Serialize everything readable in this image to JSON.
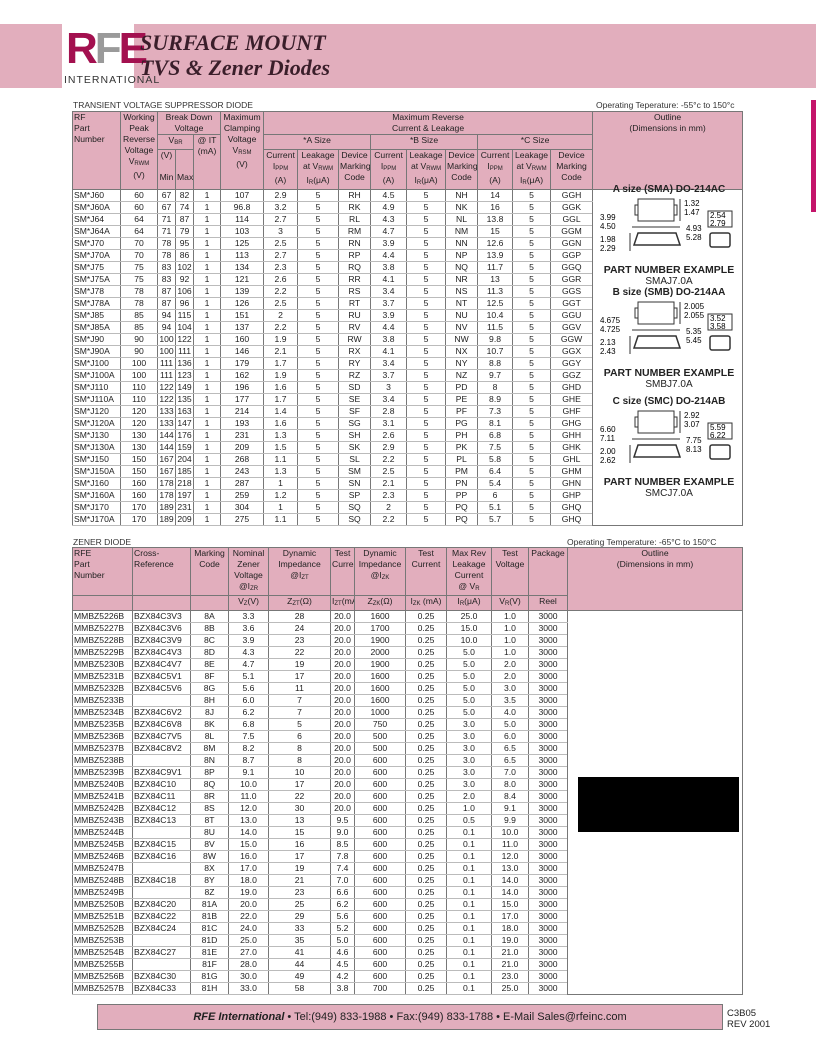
{
  "header": {
    "logo_text": "RFE",
    "logo_sub": "INTERNATIONAL",
    "title_line1": "SURFACE MOUNT",
    "title_line2": "TVS & Zener Diodes",
    "accent": "#a3104f",
    "band_color": "#e2aebd"
  },
  "tvs": {
    "caption": "TRANSIENT VOLTAGE SUPPRESSOR DIODE",
    "temp": "Operating Teperature: -55°c to 150°c",
    "h": {
      "part": "RF\nPart\nNumber",
      "working": "Working\nPeak\nReverse\nVoltage",
      "vrwm": "V",
      "vrwm_sub": "RWM",
      "v_unit": "(V)",
      "breakdown": "Break Down\nVoltage",
      "vbr": "V",
      "vbr_sub": "BR",
      "it": "@ IT\n(mA)",
      "min": "Min",
      "max": "Max",
      "clamp": "Maximum\nClamping\nVoltage",
      "vrsm": "V",
      "vrsm_sub": "RSM",
      "maxrev": "Maximum Reverse\nCurrent & Leakage",
      "a_size": "*A Size",
      "b_size": "*B Size",
      "c_size": "*C Size",
      "current": "Current",
      "ippm": "I",
      "ippm_sub": "PPM",
      "a_unit": "(A)",
      "leakage": "Leakage",
      "at_vrwm": "at V",
      "ir": "I",
      "ir_sub": "R",
      "ir_unit": "(μA)",
      "device": "Device\nMarking\nCode",
      "outline": "Outline\n(Dimensions in mm)"
    },
    "rows": [
      [
        "SM*J60",
        "60",
        "67",
        "82",
        "1",
        "107",
        "2.9",
        "5",
        "RH",
        "4.5",
        "5",
        "NH",
        "14",
        "5",
        "GGH"
      ],
      [
        "SM*J60A",
        "60",
        "67",
        "74",
        "1",
        "96.8",
        "3.2",
        "5",
        "RK",
        "4.9",
        "5",
        "NK",
        "16",
        "5",
        "GGK"
      ],
      [
        "SM*J64",
        "64",
        "71",
        "87",
        "1",
        "114",
        "2.7",
        "5",
        "RL",
        "4.3",
        "5",
        "NL",
        "13.8",
        "5",
        "GGL"
      ],
      [
        "SM*J64A",
        "64",
        "71",
        "79",
        "1",
        "103",
        "3",
        "5",
        "RM",
        "4.7",
        "5",
        "NM",
        "15",
        "5",
        "GGM"
      ],
      [
        "SM*J70",
        "70",
        "78",
        "95",
        "1",
        "125",
        "2.5",
        "5",
        "RN",
        "3.9",
        "5",
        "NN",
        "12.6",
        "5",
        "GGN"
      ],
      [
        "SM*J70A",
        "70",
        "78",
        "86",
        "1",
        "113",
        "2.7",
        "5",
        "RP",
        "4.4",
        "5",
        "NP",
        "13.9",
        "5",
        "GGP"
      ],
      [
        "SM*J75",
        "75",
        "83",
        "102",
        "1",
        "134",
        "2.3",
        "5",
        "RQ",
        "3.8",
        "5",
        "NQ",
        "11.7",
        "5",
        "GGQ"
      ],
      [
        "SM*J75A",
        "75",
        "83",
        "92",
        "1",
        "121",
        "2.6",
        "5",
        "RR",
        "4.1",
        "5",
        "NR",
        "13",
        "5",
        "GGR"
      ],
      [
        "SM*J78",
        "78",
        "87",
        "106",
        "1",
        "139",
        "2.2",
        "5",
        "RS",
        "3.4",
        "5",
        "NS",
        "11.3",
        "5",
        "GGS"
      ],
      [
        "SM*J78A",
        "78",
        "87",
        "96",
        "1",
        "126",
        "2.5",
        "5",
        "RT",
        "3.7",
        "5",
        "NT",
        "12.5",
        "5",
        "GGT"
      ],
      [
        "SM*J85",
        "85",
        "94",
        "115",
        "1",
        "151",
        "2",
        "5",
        "RU",
        "3.9",
        "5",
        "NU",
        "10.4",
        "5",
        "GGU"
      ],
      [
        "SM*J85A",
        "85",
        "94",
        "104",
        "1",
        "137",
        "2.2",
        "5",
        "RV",
        "4.4",
        "5",
        "NV",
        "11.5",
        "5",
        "GGV"
      ],
      [
        "SM*J90",
        "90",
        "100",
        "122",
        "1",
        "160",
        "1.9",
        "5",
        "RW",
        "3.8",
        "5",
        "NW",
        "9.8",
        "5",
        "GGW"
      ],
      [
        "SM*J90A",
        "90",
        "100",
        "111",
        "1",
        "146",
        "2.1",
        "5",
        "RX",
        "4.1",
        "5",
        "NX",
        "10.7",
        "5",
        "GGX"
      ],
      [
        "SM*J100",
        "100",
        "111",
        "136",
        "1",
        "179",
        "1.7",
        "5",
        "RY",
        "3.4",
        "5",
        "NY",
        "8.8",
        "5",
        "GGY"
      ],
      [
        "SM*J100A",
        "100",
        "111",
        "123",
        "1",
        "162",
        "1.9",
        "5",
        "RZ",
        "3.7",
        "5",
        "NZ",
        "9.7",
        "5",
        "GGZ"
      ],
      [
        "SM*J110",
        "110",
        "122",
        "149",
        "1",
        "196",
        "1.6",
        "5",
        "SD",
        "3",
        "5",
        "PD",
        "8",
        "5",
        "GHD"
      ],
      [
        "SM*J110A",
        "110",
        "122",
        "135",
        "1",
        "177",
        "1.7",
        "5",
        "SE",
        "3.4",
        "5",
        "PE",
        "8.9",
        "5",
        "GHE"
      ],
      [
        "SM*J120",
        "120",
        "133",
        "163",
        "1",
        "214",
        "1.4",
        "5",
        "SF",
        "2.8",
        "5",
        "PF",
        "7.3",
        "5",
        "GHF"
      ],
      [
        "SM*J120A",
        "120",
        "133",
        "147",
        "1",
        "193",
        "1.6",
        "5",
        "SG",
        "3.1",
        "5",
        "PG",
        "8.1",
        "5",
        "GHG"
      ],
      [
        "SM*J130",
        "130",
        "144",
        "176",
        "1",
        "231",
        "1.3",
        "5",
        "SH",
        "2.6",
        "5",
        "PH",
        "6.8",
        "5",
        "GHH"
      ],
      [
        "SM*J130A",
        "130",
        "144",
        "159",
        "1",
        "209",
        "1.5",
        "5",
        "SK",
        "2.9",
        "5",
        "PK",
        "7.5",
        "5",
        "GHK"
      ],
      [
        "SM*J150",
        "150",
        "167",
        "204",
        "1",
        "268",
        "1.1",
        "5",
        "SL",
        "2.2",
        "5",
        "PL",
        "5.8",
        "5",
        "GHL"
      ],
      [
        "SM*J150A",
        "150",
        "167",
        "185",
        "1",
        "243",
        "1.3",
        "5",
        "SM",
        "2.5",
        "5",
        "PM",
        "6.4",
        "5",
        "GHM"
      ],
      [
        "SM*J160",
        "160",
        "178",
        "218",
        "1",
        "287",
        "1",
        "5",
        "SN",
        "2.1",
        "5",
        "PN",
        "5.4",
        "5",
        "GHN"
      ],
      [
        "SM*J160A",
        "160",
        "178",
        "197",
        "1",
        "259",
        "1.2",
        "5",
        "SP",
        "2.3",
        "5",
        "PP",
        "6",
        "5",
        "GHP"
      ],
      [
        "SM*J170",
        "170",
        "189",
        "231",
        "1",
        "304",
        "1",
        "5",
        "SQ",
        "2",
        "5",
        "PQ",
        "5.1",
        "5",
        "GHQ"
      ],
      [
        "SM*J170A",
        "170",
        "189",
        "209",
        "1",
        "275",
        "1.1",
        "5",
        "SQ",
        "2.2",
        "5",
        "PQ",
        "5.7",
        "5",
        "GHQ"
      ]
    ],
    "outline": {
      "a": {
        "title": "A size (SMA) DO-214AC",
        "d1": "1.32",
        "d2": "1.47",
        "d3": "2.54",
        "d4": "2.79",
        "d5": "3.99",
        "d6": "4.50",
        "d7": "4.93",
        "d8": "5.28",
        "d9": "1.98",
        "d10": "2.29",
        "pn_label": "PART NUMBER EXAMPLE",
        "pn": "SMAJ7.0A"
      },
      "b": {
        "title": "B size (SMB) DO-214AA",
        "d1": "2.005",
        "d2": "2.055",
        "d3": "3.52",
        "d4": "3.58",
        "d5": "4.675",
        "d6": "4.725",
        "d7": "5.35",
        "d8": "5.45",
        "d9": "2.13",
        "d10": "2.43",
        "pn_label": "PART NUMBER EXAMPLE",
        "pn": "SMBJ7.0A"
      },
      "c": {
        "title": "C size (SMC) DO-214AB",
        "d1": "2.92",
        "d2": "3.07",
        "d3": "5.59",
        "d4": "6.22",
        "d5": "6.60",
        "d6": "7.11",
        "d7": "7.75",
        "d8": "8.13",
        "d9": "2.00",
        "d10": "2.62",
        "pn_label": "PART NUMBER EXAMPLE",
        "pn": "SMCJ7.0A"
      }
    }
  },
  "zener": {
    "caption": "ZENER DIODE",
    "temp": "Operating Temperature: -65°C to 150°C",
    "h": [
      "RFE\nPart\nNumber",
      "Cross-\nReference",
      "Marking\nCode",
      "Nominal\nZener\nVoltage\n@I_ZR",
      "Dynamic\nImpedance\n@I_ZT",
      "Test\nCurrent",
      "Dynamic\nImpedance\n@I_ZK",
      "Test\nCurrent",
      "Max Rev\nLeakage\nCurrent\n@ V_R",
      "Test\nVoltage",
      "Package",
      "Outline\n(Dimensions in mm)"
    ],
    "units": [
      "",
      "",
      "",
      "V_Z(V)",
      "Z_ZT(Ω)",
      "I_ZT(mA)",
      "Z_ZK(Ω)",
      "I_ZK (mA)",
      "I_R(μA)",
      "V_R(V)",
      "Reel"
    ],
    "rows": [
      [
        "MMBZ5226B",
        "BZX84C3V3",
        "8A",
        "3.3",
        "28",
        "20.0",
        "1600",
        "0.25",
        "25.0",
        "1.0",
        "3000"
      ],
      [
        "MMBZ5227B",
        "BZX84C3V6",
        "8B",
        "3.6",
        "24",
        "20.0",
        "1700",
        "0.25",
        "15.0",
        "1.0",
        "3000"
      ],
      [
        "MMBZ5228B",
        "BZX84C3V9",
        "8C",
        "3.9",
        "23",
        "20.0",
        "1900",
        "0.25",
        "10.0",
        "1.0",
        "3000"
      ],
      [
        "MMBZ5229B",
        "BZX84C4V3",
        "8D",
        "4.3",
        "22",
        "20.0",
        "2000",
        "0.25",
        "5.0",
        "1.0",
        "3000"
      ],
      [
        "MMBZ5230B",
        "BZX84C4V7",
        "8E",
        "4.7",
        "19",
        "20.0",
        "1900",
        "0.25",
        "5.0",
        "2.0",
        "3000"
      ],
      [
        "MMBZ5231B",
        "BZX84C5V1",
        "8F",
        "5.1",
        "17",
        "20.0",
        "1600",
        "0.25",
        "5.0",
        "2.0",
        "3000"
      ],
      [
        "MMBZ5232B",
        "BZX84C5V6",
        "8G",
        "5.6",
        "11",
        "20.0",
        "1600",
        "0.25",
        "5.0",
        "3.0",
        "3000"
      ],
      [
        "MMBZ5233B",
        "",
        "8H",
        "6.0",
        "7",
        "20.0",
        "1600",
        "0.25",
        "5.0",
        "3.5",
        "3000"
      ],
      [
        "MMBZ5234B",
        "BZX84C6V2",
        "8J",
        "6.2",
        "7",
        "20.0",
        "1000",
        "0.25",
        "5.0",
        "4.0",
        "3000"
      ],
      [
        "MMBZ5235B",
        "BZX84C6V8",
        "8K",
        "6.8",
        "5",
        "20.0",
        "750",
        "0.25",
        "3.0",
        "5.0",
        "3000"
      ],
      [
        "MMBZ5236B",
        "BZX84C7V5",
        "8L",
        "7.5",
        "6",
        "20.0",
        "500",
        "0.25",
        "3.0",
        "6.0",
        "3000"
      ],
      [
        "MMBZ5237B",
        "BZX84C8V2",
        "8M",
        "8.2",
        "8",
        "20.0",
        "500",
        "0.25",
        "3.0",
        "6.5",
        "3000"
      ],
      [
        "MMBZ5238B",
        "",
        "8N",
        "8.7",
        "8",
        "20.0",
        "600",
        "0.25",
        "3.0",
        "6.5",
        "3000"
      ],
      [
        "MMBZ5239B",
        "BZX84C9V1",
        "8P",
        "9.1",
        "10",
        "20.0",
        "600",
        "0.25",
        "3.0",
        "7.0",
        "3000"
      ],
      [
        "MMBZ5240B",
        "BZX84C10",
        "8Q",
        "10.0",
        "17",
        "20.0",
        "600",
        "0.25",
        "3.0",
        "8.0",
        "3000"
      ],
      [
        "MMBZ5241B",
        "BZX84C11",
        "8R",
        "11.0",
        "22",
        "20.0",
        "600",
        "0.25",
        "2.0",
        "8.4",
        "3000"
      ],
      [
        "MMBZ5242B",
        "BZX84C12",
        "8S",
        "12.0",
        "30",
        "20.0",
        "600",
        "0.25",
        "1.0",
        "9.1",
        "3000"
      ],
      [
        "MMBZ5243B",
        "BZX84C13",
        "8T",
        "13.0",
        "13",
        "9.5",
        "600",
        "0.25",
        "0.5",
        "9.9",
        "3000"
      ],
      [
        "MMBZ5244B",
        "",
        "8U",
        "14.0",
        "15",
        "9.0",
        "600",
        "0.25",
        "0.1",
        "10.0",
        "3000"
      ],
      [
        "MMBZ5245B",
        "BZX84C15",
        "8V",
        "15.0",
        "16",
        "8.5",
        "600",
        "0.25",
        "0.1",
        "11.0",
        "3000"
      ],
      [
        "MMBZ5246B",
        "BZX84C16",
        "8W",
        "16.0",
        "17",
        "7.8",
        "600",
        "0.25",
        "0.1",
        "12.0",
        "3000"
      ],
      [
        "MMBZ5247B",
        "",
        "8X",
        "17.0",
        "19",
        "7.4",
        "600",
        "0.25",
        "0.1",
        "13.0",
        "3000"
      ],
      [
        "MMBZ5248B",
        "BZX84C18",
        "8Y",
        "18.0",
        "21",
        "7.0",
        "600",
        "0.25",
        "0.1",
        "14.0",
        "3000"
      ],
      [
        "MMBZ5249B",
        "",
        "8Z",
        "19.0",
        "23",
        "6.6",
        "600",
        "0.25",
        "0.1",
        "14.0",
        "3000"
      ],
      [
        "MMBZ5250B",
        "BZX84C20",
        "81A",
        "20.0",
        "25",
        "6.2",
        "600",
        "0.25",
        "0.1",
        "15.0",
        "3000"
      ],
      [
        "MMBZ5251B",
        "BZX84C22",
        "81B",
        "22.0",
        "29",
        "5.6",
        "600",
        "0.25",
        "0.1",
        "17.0",
        "3000"
      ],
      [
        "MMBZ5252B",
        "BZX84C24",
        "81C",
        "24.0",
        "33",
        "5.2",
        "600",
        "0.25",
        "0.1",
        "18.0",
        "3000"
      ],
      [
        "MMBZ5253B",
        "",
        "81D",
        "25.0",
        "35",
        "5.0",
        "600",
        "0.25",
        "0.1",
        "19.0",
        "3000"
      ],
      [
        "MMBZ5254B",
        "BZX84C27",
        "81E",
        "27.0",
        "41",
        "4.6",
        "600",
        "0.25",
        "0.1",
        "21.0",
        "3000"
      ],
      [
        "MMBZ5255B",
        "",
        "81F",
        "28.0",
        "44",
        "4.5",
        "600",
        "0.25",
        "0.1",
        "21.0",
        "3000"
      ],
      [
        "MMBZ5256B",
        "BZX84C30",
        "81G",
        "30.0",
        "49",
        "4.2",
        "600",
        "0.25",
        "0.1",
        "23.0",
        "3000"
      ],
      [
        "MMBZ5257B",
        "BZX84C33",
        "81H",
        "33.0",
        "58",
        "3.8",
        "700",
        "0.25",
        "0.1",
        "25.0",
        "3000"
      ]
    ]
  },
  "footer": {
    "company": "RFE International",
    "contact": " • Tel:(949) 833-1988 • Fax:(949) 833-1788 • E-Mail Sales@rfeinc.com",
    "code": "C3B05",
    "rev": "REV 2001"
  }
}
